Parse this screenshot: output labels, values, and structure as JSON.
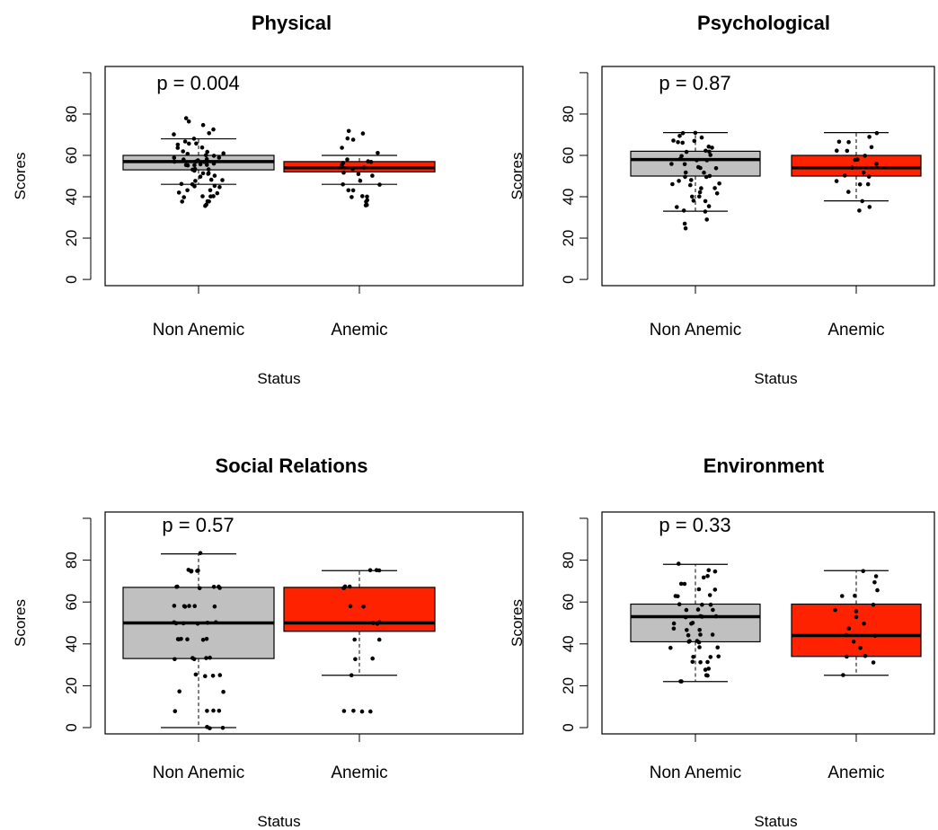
{
  "figure": {
    "colors": {
      "non_anemic_box": "#c0c0c0",
      "anemic_box": "#ff2200",
      "points": "#000000",
      "axis": "#000000"
    }
  },
  "chart_data": [
    {
      "type": "box",
      "title": "Physical",
      "annotation": "p = 0.004",
      "xlabel": "Status",
      "ylabel": "Scores",
      "categories": [
        "Non Anemic",
        "Anemic"
      ],
      "ylim": [
        -3,
        103
      ],
      "yticks": [
        0,
        20,
        40,
        60,
        80
      ],
      "yticks_labels": [
        "0",
        "20",
        "40",
        "60",
        "80"
      ],
      "boxes": [
        {
          "name": "Non Anemic",
          "min": 46,
          "q1": 53,
          "median": 57,
          "q3": 60,
          "max": 68,
          "outliers": [
            71,
            73,
            75,
            78,
            36,
            38,
            40,
            43
          ],
          "points": [
            36,
            36,
            38,
            38,
            38,
            40,
            40,
            40,
            40,
            42,
            42,
            43,
            43,
            45,
            45,
            45,
            46,
            46,
            48,
            48,
            48,
            50,
            50,
            51,
            51,
            51,
            53,
            53,
            53,
            53,
            55,
            55,
            55,
            55,
            56,
            56,
            57,
            57,
            57,
            58,
            58,
            58,
            59,
            59,
            60,
            60,
            61,
            61,
            62,
            62,
            64,
            64,
            65,
            66,
            66,
            67,
            68,
            70,
            71,
            73,
            75,
            76,
            78
          ]
        },
        {
          "name": "Anemic",
          "min": 46,
          "q1": 52,
          "median": 54,
          "q3": 57,
          "max": 60,
          "outliers": [
            64,
            68,
            71,
            72,
            36,
            38,
            40,
            43
          ],
          "points": [
            36,
            36,
            38,
            38,
            40,
            40,
            40,
            43,
            43,
            46,
            46,
            48,
            50,
            51,
            52,
            53,
            54,
            55,
            56,
            57,
            57,
            58,
            61,
            64,
            68,
            68,
            71,
            72
          ]
        }
      ]
    },
    {
      "type": "box",
      "title": "Psychological",
      "annotation": "p = 0.87",
      "xlabel": "Status",
      "ylabel": "Scores",
      "categories": [
        "Non Anemic",
        "Anemic"
      ],
      "ylim": [
        -3,
        103
      ],
      "yticks": [
        0,
        20,
        40,
        60,
        80
      ],
      "yticks_labels": [
        "0",
        "20",
        "40",
        "60",
        "80"
      ],
      "boxes": [
        {
          "name": "Non Anemic",
          "min": 33,
          "q1": 50,
          "median": 58,
          "q3": 62,
          "max": 71,
          "outliers": [
            25,
            27,
            29
          ],
          "points": [
            25,
            27,
            29,
            33,
            33,
            35,
            35,
            38,
            38,
            40,
            40,
            42,
            42,
            44,
            44,
            46,
            46,
            46,
            48,
            48,
            50,
            50,
            50,
            52,
            52,
            54,
            54,
            54,
            56,
            56,
            58,
            58,
            58,
            60,
            60,
            62,
            62,
            62,
            64,
            64,
            66,
            66,
            67,
            67,
            69,
            69,
            71,
            71
          ]
        },
        {
          "name": "Anemic",
          "min": 38,
          "q1": 50,
          "median": 54,
          "q3": 60,
          "max": 71,
          "outliers": [
            33,
            35
          ],
          "points": [
            33,
            35,
            38,
            42,
            46,
            46,
            48,
            50,
            50,
            52,
            54,
            56,
            58,
            58,
            60,
            62,
            62,
            64,
            66,
            67,
            69,
            71
          ]
        }
      ]
    },
    {
      "type": "box",
      "title": "Social Relations",
      "annotation": "p = 0.57",
      "xlabel": "Status",
      "ylabel": "Scores",
      "categories": [
        "Non Anemic",
        "Anemic"
      ],
      "ylim": [
        -3,
        103
      ],
      "yticks": [
        0,
        20,
        40,
        60,
        80
      ],
      "yticks_labels": [
        "0",
        "20",
        "40",
        "60",
        "80"
      ],
      "boxes": [
        {
          "name": "Non Anemic",
          "min": 0,
          "q1": 33,
          "median": 50,
          "q3": 67,
          "max": 83,
          "outliers": [],
          "points": [
            0,
            0,
            0,
            8,
            8,
            8,
            8,
            17,
            17,
            25,
            25,
            25,
            25,
            33,
            33,
            33,
            33,
            33,
            42,
            42,
            42,
            42,
            42,
            42,
            50,
            50,
            50,
            50,
            50,
            50,
            58,
            58,
            58,
            58,
            58,
            58,
            67,
            67,
            67,
            67,
            67,
            67,
            75,
            75,
            75,
            75,
            75,
            83
          ]
        },
        {
          "name": "Anemic",
          "min": 25,
          "q1": 46,
          "median": 50,
          "q3": 67,
          "max": 75,
          "outliers": [
            8,
            8
          ],
          "points": [
            8,
            8,
            8,
            8,
            25,
            33,
            33,
            42,
            42,
            50,
            50,
            50,
            58,
            58,
            67,
            67,
            67,
            67,
            75,
            75,
            75
          ]
        }
      ]
    },
    {
      "type": "box",
      "title": "Environment",
      "annotation": "p = 0.33",
      "xlabel": "Status",
      "ylabel": "Scores",
      "categories": [
        "Non Anemic",
        "Anemic"
      ],
      "ylim": [
        -3,
        103
      ],
      "yticks": [
        0,
        20,
        40,
        60,
        80
      ],
      "yticks_labels": [
        "0",
        "20",
        "40",
        "60",
        "80"
      ],
      "boxes": [
        {
          "name": "Non Anemic",
          "min": 22,
          "q1": 41,
          "median": 53,
          "q3": 59,
          "max": 78,
          "outliers": [],
          "points": [
            22,
            22,
            25,
            25,
            28,
            28,
            31,
            31,
            31,
            34,
            34,
            34,
            38,
            38,
            38,
            41,
            41,
            41,
            41,
            44,
            44,
            44,
            47,
            47,
            47,
            50,
            50,
            50,
            53,
            53,
            53,
            53,
            56,
            56,
            56,
            59,
            59,
            59,
            63,
            63,
            63,
            66,
            66,
            69,
            69,
            72,
            72,
            75,
            75,
            78
          ]
        },
        {
          "name": "Anemic",
          "min": 25,
          "q1": 34,
          "median": 44,
          "q3": 59,
          "max": 75,
          "outliers": [],
          "points": [
            25,
            31,
            34,
            34,
            38,
            41,
            44,
            44,
            47,
            50,
            53,
            56,
            56,
            59,
            63,
            63,
            66,
            69,
            72,
            75
          ]
        }
      ]
    }
  ]
}
